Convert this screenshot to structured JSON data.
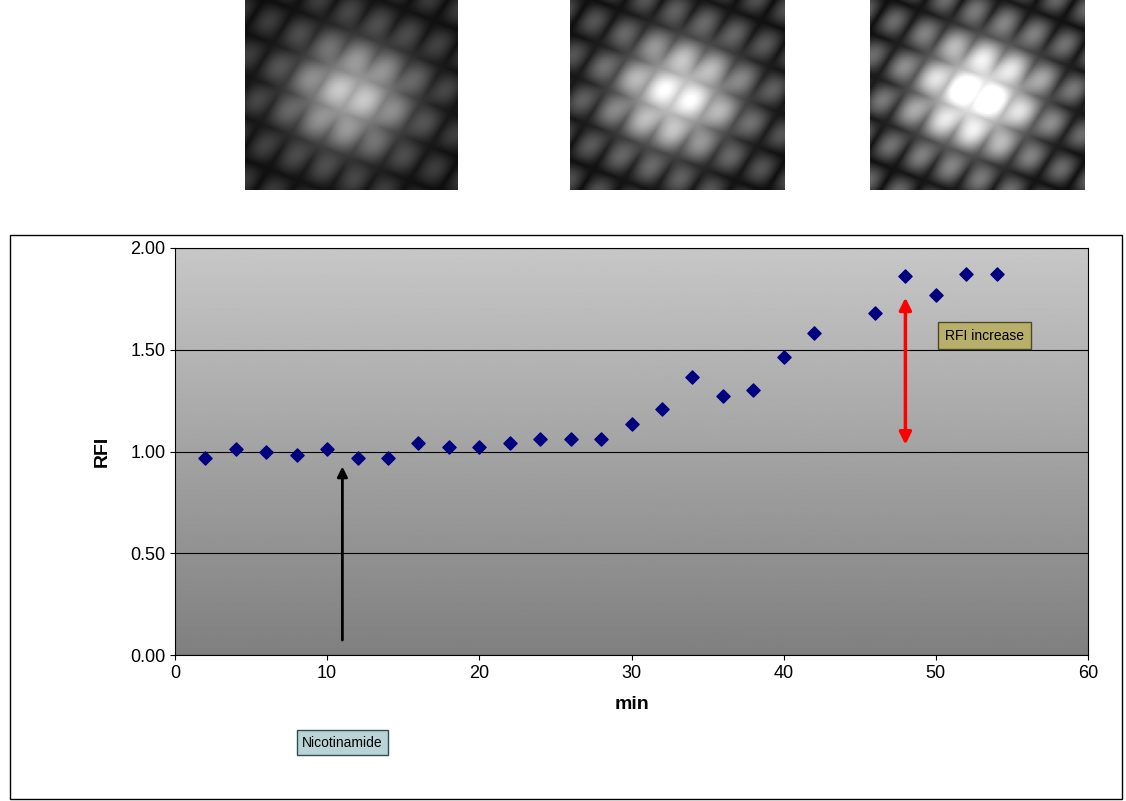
{
  "chart_data": {
    "type": "scatter",
    "x_label": "min",
    "y_label": "RFI",
    "x": [
      2,
      4,
      6,
      8,
      10,
      12,
      14,
      16,
      18,
      20,
      22,
      24,
      26,
      28,
      30,
      32,
      34,
      36,
      38,
      40,
      42,
      46,
      48,
      50,
      52,
      54
    ],
    "values": [
      0.97,
      1.01,
      1.0,
      0.985,
      1.01,
      0.97,
      0.97,
      1.04,
      1.02,
      1.02,
      1.04,
      1.06,
      1.06,
      1.06,
      1.135,
      1.21,
      1.365,
      1.275,
      1.3,
      1.465,
      1.58,
      1.68,
      1.86,
      1.77,
      1.87,
      1.87
    ],
    "color": "#000080",
    "marker": "diamond",
    "xlim": [
      0,
      60
    ],
    "xticks": [
      0,
      10,
      20,
      30,
      40,
      50,
      60
    ],
    "ylim": [
      0,
      2
    ],
    "yticks": [
      {
        "value": 0,
        "label": "0.00"
      },
      {
        "value": 0.5,
        "label": "0.50"
      },
      {
        "value": 1,
        "label": "1.00"
      },
      {
        "value": 1.5,
        "label": "1.50"
      },
      {
        "value": 2,
        "label": "2.00"
      }
    ],
    "grid": true,
    "annotations": [
      {
        "text": "Nicotinamide",
        "x": 11,
        "y": 0.94
      },
      {
        "text": "RFI increase",
        "x": 48,
        "y_from": 1.02,
        "y_to": 1.77,
        "color": "#ff0000"
      }
    ]
  }
}
